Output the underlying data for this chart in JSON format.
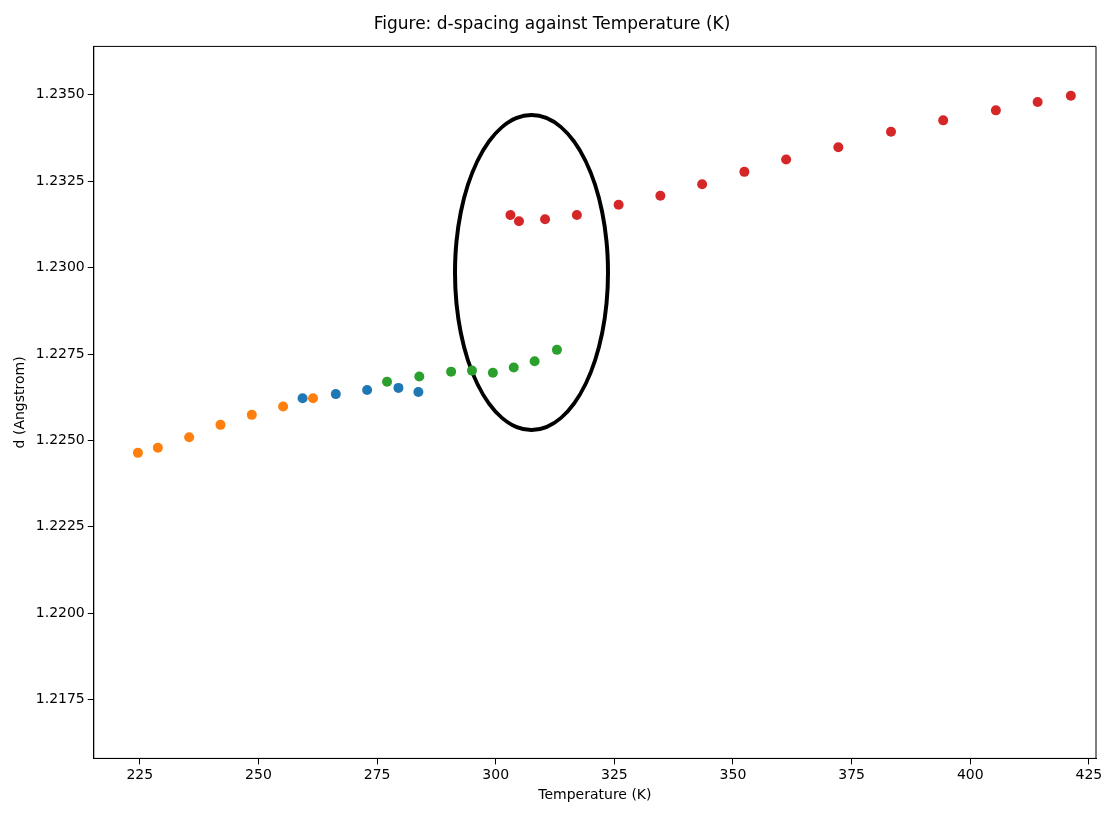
{
  "chart_data": {
    "type": "scatter",
    "title": "Figure: d-spacing against Temperature (K)",
    "xlabel": "Temperature (K)",
    "ylabel": "d (Angstrom)",
    "xlim": [
      215.3,
      426.5
    ],
    "xticks": [
      225,
      250,
      275,
      300,
      325,
      350,
      375,
      400,
      425
    ],
    "ylim": [
      1.2158,
      1.2364
    ],
    "yticks": [
      {
        "value": 1.2175,
        "label": "1.2175"
      },
      {
        "value": 1.22,
        "label": "1.2200"
      },
      {
        "value": 1.2225,
        "label": "1.2225"
      },
      {
        "value": 1.225,
        "label": "1.2250"
      },
      {
        "value": 1.2275,
        "label": "1.2275"
      },
      {
        "value": 1.23,
        "label": "1.2300"
      },
      {
        "value": 1.2325,
        "label": "1.2325"
      },
      {
        "value": 1.235,
        "label": "1.2350"
      }
    ],
    "marker": "circle",
    "legend": false,
    "series": [
      {
        "color": "#1f77b4",
        "x": [
          259.3,
          266.3,
          272.9,
          279.5,
          283.7
        ],
        "values": [
          1.22622,
          1.22634,
          1.22646,
          1.22652,
          1.2264
        ]
      },
      {
        "color": "#ff7f0e",
        "x": [
          224.6,
          228.8,
          235.4,
          242.0,
          248.6,
          255.2,
          261.5
        ],
        "values": [
          1.22464,
          1.22479,
          1.22509,
          1.22545,
          1.22574,
          1.22598,
          1.22622
        ]
      },
      {
        "color": "#2ca02c",
        "x": [
          277.1,
          283.9,
          290.6,
          295.0,
          299.4,
          303.8,
          308.2,
          312.9
        ],
        "values": [
          1.2267,
          1.22685,
          1.22699,
          1.22702,
          1.22696,
          1.22711,
          1.22729,
          1.22762
        ]
      },
      {
        "color": "#d62728",
        "x": [
          303.1,
          304.9,
          310.4,
          317.1,
          325.9,
          334.7,
          343.5,
          352.4,
          361.2,
          372.2,
          383.3,
          394.3,
          405.4,
          414.2,
          421.2
        ],
        "values": [
          1.23152,
          1.23134,
          1.2314,
          1.23152,
          1.23182,
          1.23208,
          1.23241,
          1.23277,
          1.23313,
          1.23348,
          1.23393,
          1.23426,
          1.23455,
          1.23479,
          1.23497
        ]
      }
    ]
  }
}
